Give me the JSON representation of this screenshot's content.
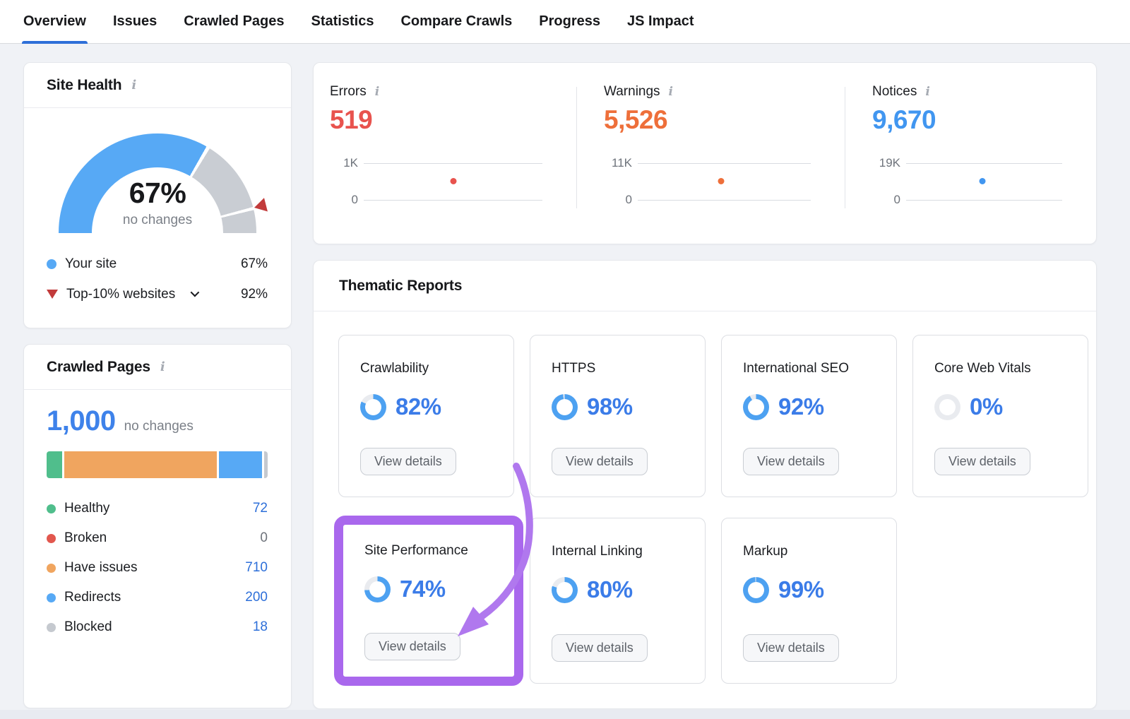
{
  "tabs": {
    "items": [
      {
        "label": "Overview",
        "active": true
      },
      {
        "label": "Issues",
        "active": false
      },
      {
        "label": "Crawled Pages",
        "active": false
      },
      {
        "label": "Statistics",
        "active": false
      },
      {
        "label": "Compare Crawls",
        "active": false
      },
      {
        "label": "Progress",
        "active": false
      },
      {
        "label": "JS Impact",
        "active": false
      }
    ]
  },
  "site_health": {
    "title": "Site Health",
    "score": "67%",
    "score_value": 67,
    "change": "no changes",
    "benchmark_value": 92,
    "legend": {
      "your_site": {
        "label": "Your site",
        "value": "67%"
      },
      "top10": {
        "label": "Top-10% websites",
        "value": "92%"
      }
    }
  },
  "issues_summary": {
    "metrics": [
      {
        "name": "Errors",
        "value": "519",
        "value_num": 519,
        "max_label": "1K",
        "min_label": "0",
        "max_num": 1000,
        "dot_x": 0.5,
        "color": "#e8534e"
      },
      {
        "name": "Warnings",
        "value": "5,526",
        "value_num": 5526,
        "max_label": "11K",
        "min_label": "0",
        "max_num": 11000,
        "dot_x": 0.48,
        "color": "#ee6f3a"
      },
      {
        "name": "Notices",
        "value": "9,670",
        "value_num": 9670,
        "max_label": "19K",
        "min_label": "0",
        "max_num": 19000,
        "dot_x": 0.49,
        "color": "#4196f0"
      }
    ]
  },
  "crawled_pages": {
    "title": "Crawled Pages",
    "total": "1,000",
    "total_num": 1000,
    "change": "no changes",
    "legend": [
      {
        "label": "Healthy",
        "value": "72",
        "num": 72,
        "color": "#50be8c",
        "value_color": "#2d6fd9"
      },
      {
        "label": "Broken",
        "value": "0",
        "num": 0,
        "color": "#e2574e",
        "value_color": "#6e737b"
      },
      {
        "label": "Have issues",
        "value": "710",
        "num": 710,
        "color": "#f0a55f",
        "value_color": "#2d6fd9"
      },
      {
        "label": "Redirects",
        "value": "200",
        "num": 200,
        "color": "#57a9f5",
        "value_color": "#2d6fd9"
      },
      {
        "label": "Blocked",
        "value": "18",
        "num": 18,
        "color": "#c5c9cf",
        "value_color": "#2d6fd9"
      }
    ]
  },
  "thematic": {
    "title": "Thematic Reports",
    "view_details": "View details",
    "cards": [
      {
        "title": "Crawlability",
        "percent": "82%",
        "percent_num": 82,
        "highlighted": false
      },
      {
        "title": "HTTPS",
        "percent": "98%",
        "percent_num": 98,
        "highlighted": false
      },
      {
        "title": "International SEO",
        "percent": "92%",
        "percent_num": 92,
        "highlighted": false
      },
      {
        "title": "Core Web Vitals",
        "percent": "0%",
        "percent_num": 0,
        "highlighted": false
      },
      {
        "title": "Site Performance",
        "percent": "74%",
        "percent_num": 74,
        "highlighted": true
      },
      {
        "title": "Internal Linking",
        "percent": "80%",
        "percent_num": 80,
        "highlighted": false
      },
      {
        "title": "Markup",
        "percent": "99%",
        "percent_num": 99,
        "highlighted": false
      }
    ]
  },
  "colors": {
    "accent_blue": "#2e6fd8",
    "link_blue": "#2d6fd9",
    "number_blue": "#3e82ea",
    "percent_blue": "#3b7ce8",
    "ring_blue": "#4da1f1",
    "ring_track": "#e9ebef",
    "gauge_blue": "#57a9f5",
    "gauge_gray": "#c9cdd3",
    "marker_red": "#c23b3b",
    "highlight_purple": "#a968ed",
    "arrow_purple": "#b078ee"
  }
}
